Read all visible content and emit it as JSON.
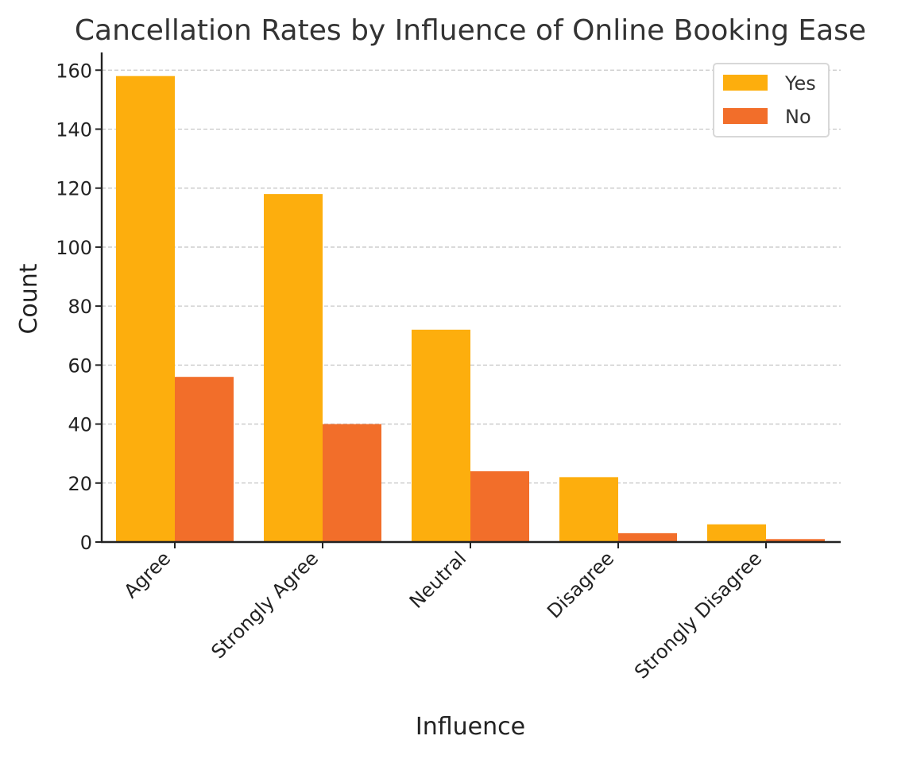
{
  "chart_data": {
    "type": "bar",
    "title": "Cancellation Rates by Influence of Online Booking Ease",
    "xlabel": "Influence",
    "ylabel": "Count",
    "categories": [
      "Agree",
      "Strongly Agree",
      "Neutral",
      "Disagree",
      "Strongly Disagree"
    ],
    "series": [
      {
        "name": "Yes",
        "values": [
          158,
          118,
          72,
          22,
          6
        ],
        "color": "#FDAE0D"
      },
      {
        "name": "No",
        "values": [
          56,
          40,
          24,
          3,
          1
        ],
        "color": "#F26E2A"
      }
    ],
    "ylim": [
      0,
      166
    ],
    "yticks": [
      0,
      20,
      40,
      60,
      80,
      100,
      120,
      140,
      160
    ],
    "grid": "y-dashed",
    "legend_position": "top-right"
  }
}
